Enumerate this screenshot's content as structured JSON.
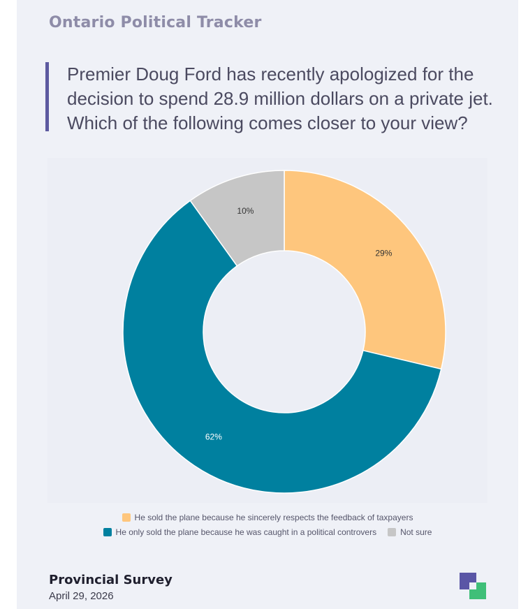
{
  "header": {
    "brand": "Ontario Political Tracker",
    "question": "Premier Doug Ford has recently apologized for the decision to spend 28.9 million dollars on a private jet. Which of the following comes closer to your view?"
  },
  "colors": {
    "sincere": "#fec67d",
    "controversy": "#00809f",
    "not_sure": "#c6c6c6"
  },
  "chart_data": {
    "type": "pie",
    "donut": true,
    "categories": [
      "He sold the plane because he sincerely respects the feedback of taxpayers",
      "He only sold the plane because he was caught in a political controvers",
      "Not sure"
    ],
    "values": [
      29,
      62,
      10
    ],
    "labels": [
      "29%",
      "62%",
      "10%"
    ],
    "colors": [
      "#fec67d",
      "#00809f",
      "#c6c6c6"
    ],
    "legend_position": "bottom"
  },
  "footer": {
    "title": "Provincial Survey",
    "date": "April 29, 2026"
  },
  "logo_icon": "brand-squares-icon"
}
